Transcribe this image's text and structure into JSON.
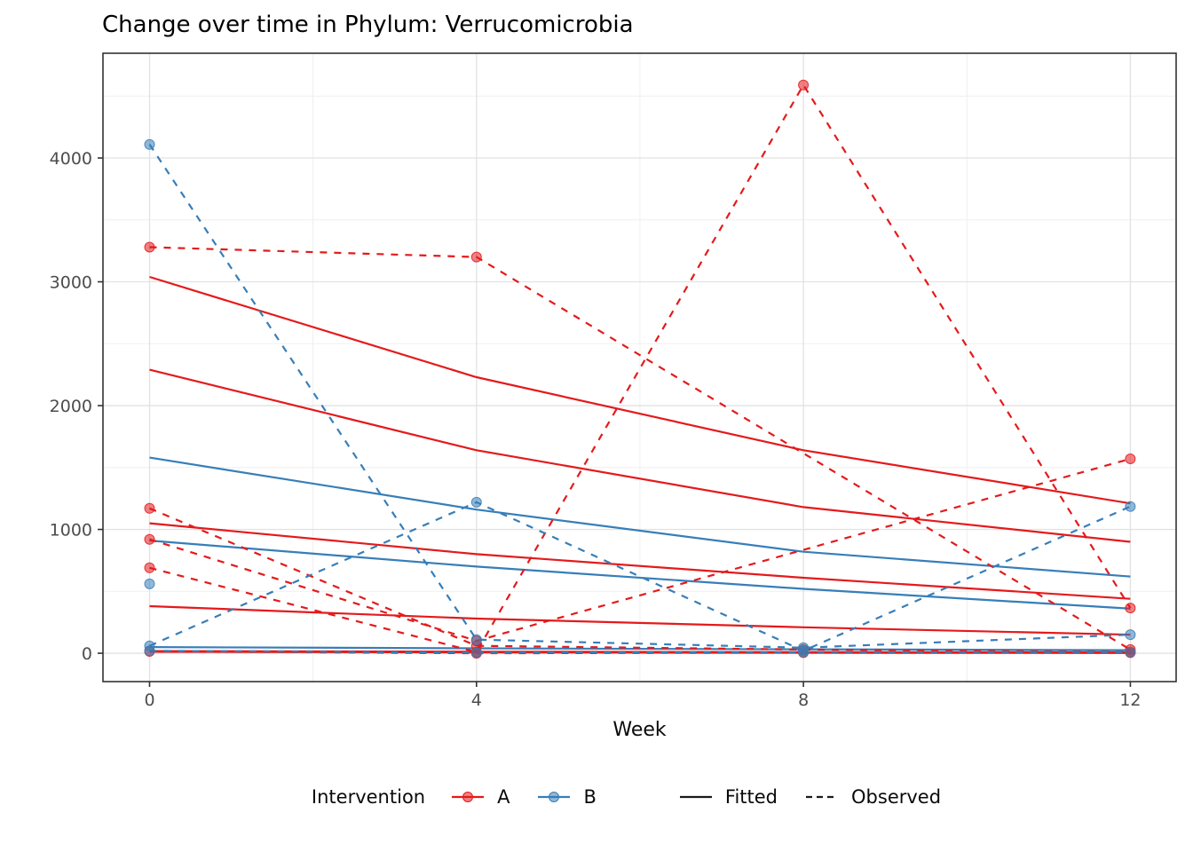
{
  "title": "Change over time in Phylum: Verrucomicrobia",
  "chart_data": {
    "type": "line",
    "title": "Change over time in Phylum: Verrucomicrobia",
    "xlabel": "Week",
    "ylabel": "",
    "x_ticks": [
      0,
      4,
      8,
      12
    ],
    "y_ticks": [
      0,
      1000,
      2000,
      3000,
      4000
    ],
    "x_minor": [
      2,
      6,
      10
    ],
    "y_minor": [
      500,
      1500,
      2500,
      3500,
      4500
    ],
    "xlim": [
      -0.57,
      12.56
    ],
    "ylim": [
      -229,
      4846
    ],
    "grid": true,
    "legend_position": "bottom",
    "colors": {
      "A": "#E41A1C",
      "B": "#377EB8"
    },
    "point_alpha": 0.55,
    "series": [
      {
        "group": "A",
        "linetype": "Fitted",
        "x": [
          0,
          4,
          8,
          12
        ],
        "y": [
          3040,
          2230,
          1640,
          1210
        ]
      },
      {
        "group": "A",
        "linetype": "Fitted",
        "x": [
          0,
          4,
          8,
          12
        ],
        "y": [
          2290,
          1640,
          1180,
          900
        ]
      },
      {
        "group": "A",
        "linetype": "Fitted",
        "x": [
          0,
          4,
          8,
          12
        ],
        "y": [
          1050,
          800,
          610,
          440
        ]
      },
      {
        "group": "A",
        "linetype": "Fitted",
        "x": [
          0,
          4,
          8,
          12
        ],
        "y": [
          380,
          280,
          210,
          150
        ]
      },
      {
        "group": "A",
        "linetype": "Fitted",
        "x": [
          0,
          4,
          8,
          12
        ],
        "y": [
          15,
          10,
          7,
          5
        ],
        "width": 3
      },
      {
        "group": "B",
        "linetype": "Fitted",
        "x": [
          0,
          4,
          8,
          12
        ],
        "y": [
          1580,
          1160,
          820,
          620
        ]
      },
      {
        "group": "B",
        "linetype": "Fitted",
        "x": [
          0,
          4,
          8,
          12
        ],
        "y": [
          910,
          700,
          520,
          360
        ]
      },
      {
        "group": "B",
        "linetype": "Fitted",
        "x": [
          0,
          4,
          8,
          12
        ],
        "y": [
          50,
          40,
          32,
          25
        ]
      },
      {
        "group": "A",
        "linetype": "Observed",
        "x": [
          0,
          4,
          12
        ],
        "y": [
          3280,
          3200,
          30
        ]
      },
      {
        "group": "A",
        "linetype": "Observed",
        "x": [
          0,
          4,
          8,
          12
        ],
        "y": [
          1170,
          60,
          30,
          10
        ]
      },
      {
        "group": "A",
        "linetype": "Observed",
        "x": [
          0,
          4,
          12
        ],
        "y": [
          920,
          100,
          1570
        ]
      },
      {
        "group": "A",
        "linetype": "Observed",
        "x": [
          0,
          4,
          8,
          12
        ],
        "y": [
          690,
          10,
          4590,
          365
        ]
      },
      {
        "group": "A",
        "linetype": "Observed",
        "x": [
          0,
          4,
          8,
          12
        ],
        "y": [
          15,
          0,
          5,
          5
        ]
      },
      {
        "group": "B",
        "linetype": "Observed",
        "x": [
          0,
          4,
          8,
          12
        ],
        "y": [
          4110,
          110,
          45,
          150
        ]
      },
      {
        "group": "B",
        "linetype": "Observed",
        "x": [
          0,
          4,
          8,
          12
        ],
        "y": [
          60,
          1220,
          20,
          1185
        ]
      },
      {
        "group": "B",
        "linetype": "Observed",
        "x": [
          0
        ],
        "y": [
          560
        ]
      },
      {
        "group": "B",
        "linetype": "Observed",
        "x": [
          0,
          4,
          8,
          12
        ],
        "y": [
          20,
          5,
          10,
          10
        ]
      }
    ]
  },
  "legend": {
    "title": "Intervention",
    "groups": [
      {
        "label": "A",
        "color": "#E41A1C"
      },
      {
        "label": "B",
        "color": "#377EB8"
      }
    ],
    "linetypes": [
      {
        "label": "Fitted",
        "style": "solid"
      },
      {
        "label": "Observed",
        "style": "dashed"
      }
    ]
  },
  "style": {
    "grid_major_color": "#E2E2E2",
    "grid_minor_color": "#EFEFEF",
    "panel_border_color": "#333333",
    "tick_label_color": "#4d4d4d",
    "linetype_key_color": "#1a1a1a"
  }
}
